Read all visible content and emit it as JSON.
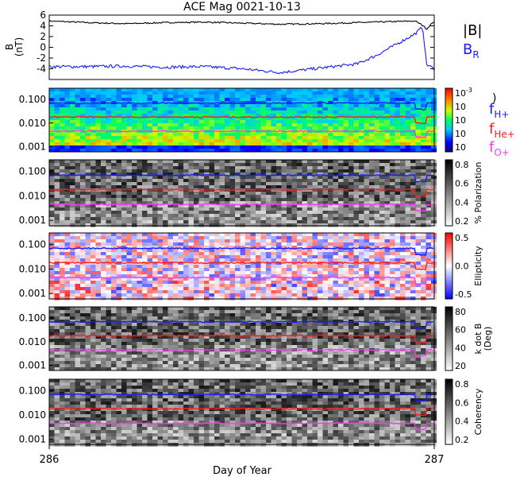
{
  "title": "ACE Mag 0021-10-13",
  "xlabel": "Day of Year",
  "x_ticks": [
    "286",
    "287"
  ],
  "colors": {
    "h": "#1a1aff",
    "he": "#ff1a1a",
    "o": "#ff33ff",
    "b": "#000000",
    "br": "#1a1aff"
  },
  "legend": {
    "b_total": "|B|",
    "b_r": "B",
    "b_r_sub": "R",
    "f_h": "f",
    "f_h_sub": "H+",
    "f_he": "f",
    "f_he_sub": "He+",
    "f_o": "f",
    "f_o_sub": "O+",
    "spec_paren": ")"
  },
  "chart_data": [
    {
      "type": "line",
      "panel": "magnetic-field",
      "ylabel": "B (nT)",
      "ylabel_lines": [
        "B",
        "(nT)"
      ],
      "ylim": [
        -6,
        6
      ],
      "y_ticks": [
        "6",
        "4",
        "2",
        "0",
        "-2",
        "-4"
      ],
      "x": [
        286.0,
        286.1,
        286.2,
        286.3,
        286.4,
        286.5,
        286.6,
        286.7,
        286.8,
        286.85,
        286.9,
        286.95,
        286.97,
        286.98,
        287.0
      ],
      "series": [
        {
          "name": "|B|",
          "values": [
            4.9,
            4.6,
            4.4,
            4.6,
            4.7,
            4.5,
            4.3,
            4.4,
            4.6,
            4.7,
            4.8,
            4.9,
            4.1,
            3.4,
            4.9
          ]
        },
        {
          "name": "BR",
          "values": [
            -3.6,
            -3.6,
            -3.5,
            -3.7,
            -3.6,
            -4.0,
            -4.7,
            -3.9,
            -3.1,
            -1.5,
            0.5,
            2.5,
            3.8,
            -3.2,
            -4.0
          ]
        }
      ]
    },
    {
      "type": "heatmap",
      "panel": "power-spectrum",
      "ylabel": "",
      "y_ticks": [
        "0.100",
        "0.010",
        "0.001"
      ],
      "colorbar_ticks": [
        "10",
        "10",
        "10",
        "10",
        "10"
      ],
      "colorbar_exponents": [
        "-3",
        "",
        "",
        "",
        ""
      ],
      "lines": [
        "fH+",
        "fHe+",
        "fO+"
      ]
    },
    {
      "type": "heatmap",
      "panel": "polarization",
      "ylabel": "% Polarization",
      "y_ticks": [
        "0.100",
        "0.010",
        "0.001"
      ],
      "colorbar_ticks": [
        "0.8",
        "0.6",
        "0.4",
        "0.2"
      ],
      "lines": [
        "fH+",
        "fHe+",
        "fO+"
      ]
    },
    {
      "type": "heatmap",
      "panel": "ellipticity",
      "ylabel": "Ellipticity",
      "y_ticks": [
        "0.100",
        "0.010",
        "0.001"
      ],
      "colorbar_ticks": [
        "0.5",
        "0.0",
        "-0.5"
      ],
      "lines": [
        "fH+",
        "fHe+",
        "fO+"
      ]
    },
    {
      "type": "heatmap",
      "panel": "k-dot-b",
      "ylabel": "k dot B (Deg)",
      "ylabel_lines": [
        "k dot B",
        "(Deg)"
      ],
      "y_ticks": [
        "0.100",
        "0.010",
        "0.001"
      ],
      "colorbar_ticks": [
        "80",
        "60",
        "40",
        "20"
      ],
      "lines": [
        "fH+",
        "fHe+",
        "fO+"
      ]
    },
    {
      "type": "heatmap",
      "panel": "coherency",
      "ylabel": "Coherency",
      "y_ticks": [
        "0.100",
        "0.010",
        "0.001"
      ],
      "colorbar_ticks": [
        "0.8",
        "0.6",
        "0.4",
        "0.2"
      ],
      "lines": [
        "fH+",
        "fHe+",
        "fO+"
      ]
    }
  ]
}
